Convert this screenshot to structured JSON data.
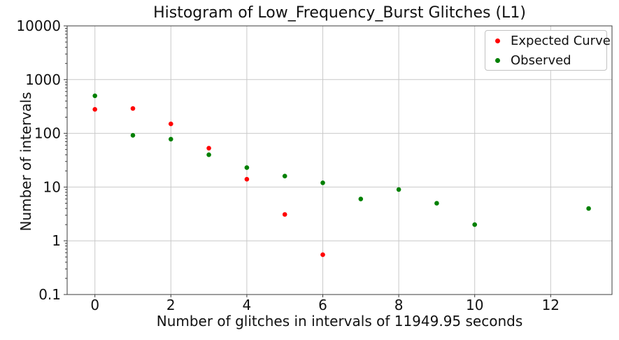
{
  "chart_data": {
    "type": "scatter",
    "title": "Histogram of Low_Frequency_Burst Glitches (L1)",
    "xlabel": "Number of glitches in intervals of 11949.95 seconds",
    "ylabel": "Number of intervals",
    "grid": true,
    "legend_position": "upper right",
    "x_axis": {
      "lim": [
        -0.75,
        13.62
      ],
      "ticks": [
        0,
        2,
        4,
        6,
        8,
        10,
        12
      ]
    },
    "y_axis": {
      "scale": "log",
      "lim": [
        0.1,
        10000
      ],
      "tick_values": [
        10000,
        1000,
        100,
        10,
        1,
        0.1
      ],
      "tick_labels": [
        "10000",
        "1000",
        "100",
        "10",
        "1",
        "0.1"
      ]
    },
    "series": [
      {
        "name": "Expected Curve",
        "color": "#ff0000",
        "points": [
          [
            0,
            280
          ],
          [
            1,
            290
          ],
          [
            2,
            150
          ],
          [
            3,
            53
          ],
          [
            4,
            14
          ],
          [
            5,
            3.1
          ],
          [
            6,
            0.55
          ]
        ]
      },
      {
        "name": "Observed",
        "color": "#008000",
        "points": [
          [
            0,
            500
          ],
          [
            1,
            92
          ],
          [
            2,
            78
          ],
          [
            3,
            40
          ],
          [
            4,
            23
          ],
          [
            5,
            16
          ],
          [
            6,
            12
          ],
          [
            7,
            6
          ],
          [
            8,
            9
          ],
          [
            9,
            5
          ],
          [
            10,
            2
          ],
          [
            13,
            4
          ]
        ]
      }
    ]
  }
}
